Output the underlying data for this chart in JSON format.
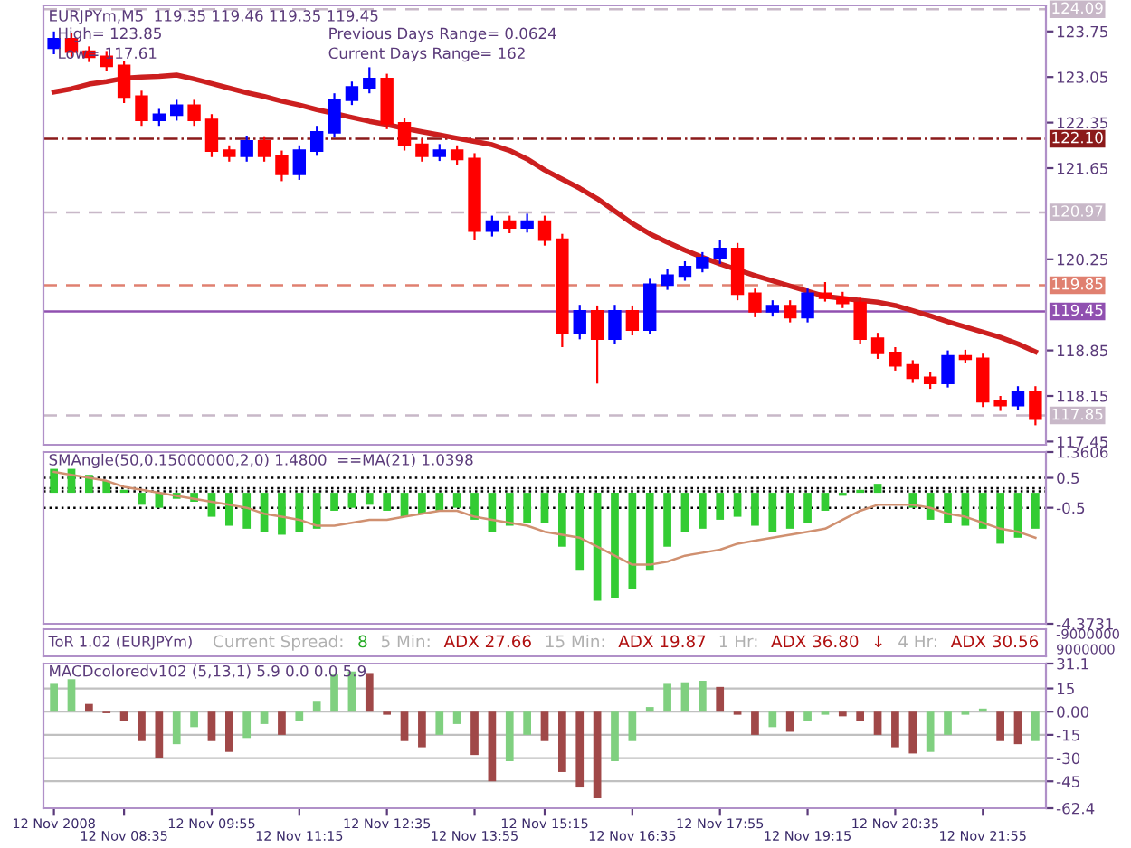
{
  "chart_data": [
    {
      "type": "candlestick",
      "title": "EURJPYm,M5  119.35 119.46 119.35 119.45",
      "annotations": [
        "High= 123.85",
        "Low= 117.61",
        "Previous Days Range= 0.0624",
        "Current Days Range= 162"
      ],
      "categories": [
        null,
        null,
        null,
        null,
        null,
        null,
        null,
        null,
        null,
        null,
        null,
        null,
        null,
        null,
        null,
        null,
        null,
        null,
        null,
        null,
        null,
        null,
        null,
        null,
        null,
        null,
        null,
        null,
        null,
        null,
        null,
        null,
        null,
        null,
        null,
        null,
        null,
        null,
        null,
        null,
        null,
        null,
        null,
        null,
        null,
        null,
        null,
        null,
        null,
        null,
        null,
        null,
        null,
        null,
        null,
        null,
        null
      ],
      "ohlc": [
        [
          123.5,
          123.75,
          123.4,
          123.63
        ],
        [
          123.63,
          123.72,
          123.36,
          123.44
        ],
        [
          123.44,
          123.52,
          123.28,
          123.36
        ],
        [
          123.36,
          123.45,
          123.14,
          123.22
        ],
        [
          123.22,
          123.3,
          122.65,
          122.75
        ],
        [
          122.75,
          122.84,
          122.3,
          122.39
        ],
        [
          122.39,
          122.56,
          122.3,
          122.47
        ],
        [
          122.47,
          122.7,
          122.38,
          122.61
        ],
        [
          122.61,
          122.7,
          122.3,
          122.39
        ],
        [
          122.39,
          122.48,
          121.82,
          121.92
        ],
        [
          121.92,
          122.0,
          121.75,
          121.84
        ],
        [
          121.84,
          122.15,
          121.75,
          122.06
        ],
        [
          122.06,
          122.14,
          121.75,
          121.84
        ],
        [
          121.84,
          121.92,
          121.45,
          121.56
        ],
        [
          121.56,
          122.0,
          121.47,
          121.92
        ],
        [
          121.92,
          122.3,
          121.84,
          122.2
        ],
        [
          122.2,
          122.8,
          122.12,
          122.7
        ],
        [
          122.7,
          122.98,
          122.62,
          122.89
        ],
        [
          122.89,
          123.2,
          122.8,
          123.02
        ],
        [
          123.02,
          123.1,
          122.25,
          122.34
        ],
        [
          122.34,
          122.42,
          121.92,
          122.01
        ],
        [
          122.01,
          122.1,
          121.75,
          121.84
        ],
        [
          121.84,
          122.02,
          121.76,
          121.92
        ],
        [
          121.92,
          122.0,
          121.7,
          121.79
        ],
        [
          121.79,
          121.88,
          120.55,
          120.69
        ],
        [
          120.69,
          120.92,
          120.6,
          120.83
        ],
        [
          120.83,
          120.92,
          120.65,
          120.74
        ],
        [
          120.74,
          120.95,
          120.66,
          120.83
        ],
        [
          120.83,
          120.92,
          120.46,
          120.55
        ],
        [
          120.55,
          120.64,
          118.9,
          119.12
        ],
        [
          119.12,
          119.55,
          119.02,
          119.45
        ],
        [
          119.45,
          119.54,
          118.34,
          119.03
        ],
        [
          119.03,
          119.55,
          118.95,
          119.45
        ],
        [
          119.45,
          119.54,
          119.08,
          119.17
        ],
        [
          119.17,
          119.95,
          119.1,
          119.86
        ],
        [
          119.86,
          120.1,
          119.78,
          120.0
        ],
        [
          120.0,
          120.22,
          119.92,
          120.13
        ],
        [
          120.13,
          120.36,
          120.05,
          120.27
        ],
        [
          120.27,
          120.55,
          120.18,
          120.41
        ],
        [
          120.41,
          120.5,
          119.62,
          119.72
        ],
        [
          119.72,
          119.8,
          119.36,
          119.45
        ],
        [
          119.45,
          119.62,
          119.37,
          119.53
        ],
        [
          119.53,
          119.62,
          119.28,
          119.36
        ],
        [
          119.36,
          119.8,
          119.28,
          119.72
        ],
        [
          119.72,
          119.9,
          119.6,
          119.66
        ],
        [
          119.66,
          119.75,
          119.5,
          119.58
        ],
        [
          119.58,
          119.66,
          118.95,
          119.03
        ],
        [
          119.03,
          119.12,
          118.72,
          118.81
        ],
        [
          118.81,
          118.9,
          118.54,
          118.62
        ],
        [
          118.62,
          118.7,
          118.35,
          118.43
        ],
        [
          118.43,
          118.52,
          118.26,
          118.35
        ],
        [
          118.35,
          118.85,
          118.28,
          118.76
        ],
        [
          118.76,
          118.86,
          118.66,
          118.72
        ],
        [
          118.72,
          118.8,
          117.98,
          118.07
        ],
        [
          118.07,
          118.15,
          117.92,
          118.01
        ],
        [
          118.01,
          118.3,
          117.94,
          118.21
        ],
        [
          118.21,
          118.3,
          117.7,
          117.8
        ]
      ],
      "colors": [
        "#0000ff",
        "#ff0000",
        "#ff0000",
        "#ff0000",
        "#ff0000",
        "#ff0000",
        "#0000ff",
        "#0000ff",
        "#ff0000",
        "#ff0000",
        "#ff0000",
        "#0000ff",
        "#ff0000",
        "#ff0000",
        "#0000ff",
        "#0000ff",
        "#0000ff",
        "#0000ff",
        "#0000ff",
        "#ff0000",
        "#ff0000",
        "#ff0000",
        "#0000ff",
        "#ff0000",
        "#ff0000",
        "#0000ff",
        "#ff0000",
        "#0000ff",
        "#ff0000",
        "#ff0000",
        "#0000ff",
        "#ff0000",
        "#0000ff",
        "#ff0000",
        "#0000ff",
        "#0000ff",
        "#0000ff",
        "#0000ff",
        "#0000ff",
        "#ff0000",
        "#ff0000",
        "#0000ff",
        "#ff0000",
        "#0000ff",
        "#ff0000",
        "#ff0000",
        "#ff0000",
        "#ff0000",
        "#ff0000",
        "#ff0000",
        "#ff0000",
        "#0000ff",
        "#ff0000",
        "#ff0000",
        "#ff0000",
        "#0000ff",
        "#ff0000"
      ],
      "series": [
        {
          "type": "line",
          "color": "#cc1f1f",
          "values": [
            122.82,
            122.87,
            122.94,
            122.98,
            123.03,
            123.05,
            123.06,
            123.08,
            123.02,
            122.95,
            122.88,
            122.81,
            122.75,
            122.68,
            122.62,
            122.55,
            122.49,
            122.43,
            122.37,
            122.32,
            122.26,
            122.21,
            122.16,
            122.11,
            122.06,
            122.01,
            121.92,
            121.79,
            121.62,
            121.48,
            121.34,
            121.18,
            120.99,
            120.8,
            120.64,
            120.51,
            120.39,
            120.28,
            120.18,
            120.09,
            120.0,
            119.92,
            119.84,
            119.76,
            119.68,
            119.65,
            119.62,
            119.59,
            119.54,
            119.46,
            119.38,
            119.29,
            119.21,
            119.13,
            119.05,
            118.95,
            118.83
          ]
        }
      ],
      "ylim": [
        117.4,
        124.15
      ],
      "yticks": [
        117.45,
        118.15,
        118.85,
        120.25,
        121.65,
        122.35,
        123.05,
        123.75
      ],
      "tick_labels": "y",
      "ref_lines": [
        {
          "axis": "y",
          "value": 124.09,
          "label": "124.09",
          "color": "#c8b8c8",
          "line_style": "dashed"
        },
        {
          "axis": "y",
          "value": 122.1,
          "label": "122.10",
          "color": "#8b1a1a",
          "line_style": "dashdot"
        },
        {
          "axis": "y",
          "value": 120.97,
          "label": "120.97",
          "color": "#c8b8c8",
          "line_style": "dashed"
        },
        {
          "axis": "y",
          "value": 119.85,
          "label": "119.85",
          "color": "#e08070",
          "line_style": "dashed"
        },
        {
          "axis": "y",
          "value": 119.45,
          "label": "119.45",
          "color": "#9050b0",
          "line_style": "solid"
        },
        {
          "axis": "y",
          "value": 117.85,
          "label": "117.85",
          "color": "#c8b8c8",
          "line_style": "dashed"
        }
      ]
    },
    {
      "type": "bar",
      "title": "SMAngle(50,0.15000000,2,0) 1.4800  ==MA(21) 1.0398",
      "color": "#33cc33",
      "categories": [
        null,
        null,
        null,
        null,
        null,
        null,
        null,
        null,
        null,
        null,
        null,
        null,
        null,
        null,
        null,
        null,
        null,
        null,
        null,
        null,
        null,
        null,
        null,
        null,
        null,
        null,
        null,
        null,
        null,
        null,
        null,
        null,
        null,
        null,
        null,
        null,
        null,
        null,
        null,
        null,
        null,
        null,
        null,
        null,
        null,
        null,
        null,
        null,
        null,
        null,
        null,
        null,
        null,
        null,
        null,
        null,
        null
      ],
      "values": [
        0.8,
        0.8,
        0.6,
        0.4,
        0.1,
        -0.4,
        -0.5,
        -0.2,
        -0.3,
        -0.8,
        -1.1,
        -1.2,
        -1.3,
        -1.4,
        -1.3,
        -1.2,
        -0.6,
        -0.5,
        -0.4,
        -0.6,
        -0.8,
        -0.7,
        -0.6,
        -0.5,
        -0.9,
        -1.3,
        -1.1,
        -1.0,
        -1.0,
        -1.8,
        -2.6,
        -3.6,
        -3.5,
        -3.2,
        -2.6,
        -1.8,
        -1.3,
        -1.2,
        -0.9,
        -0.8,
        -1.1,
        -1.3,
        -1.2,
        -1.0,
        -0.6,
        -0.1,
        0.1,
        0.3,
        0.0,
        -0.5,
        -0.9,
        -1.0,
        -1.1,
        -1.2,
        -1.7,
        -1.5,
        -1.2
      ],
      "series": [
        {
          "type": "line",
          "color": "#d09070",
          "values": [
            0.7,
            0.6,
            0.5,
            0.4,
            0.2,
            0.1,
            0.0,
            -0.1,
            -0.2,
            -0.3,
            -0.4,
            -0.5,
            -0.7,
            -0.8,
            -0.9,
            -1.1,
            -1.1,
            -1.0,
            -0.9,
            -0.9,
            -0.8,
            -0.7,
            -0.6,
            -0.6,
            -0.8,
            -0.9,
            -1.0,
            -1.1,
            -1.3,
            -1.4,
            -1.5,
            -1.8,
            -2.1,
            -2.4,
            -2.4,
            -2.3,
            -2.1,
            -2.0,
            -1.9,
            -1.7,
            -1.6,
            -1.5,
            -1.4,
            -1.3,
            -1.2,
            -0.9,
            -0.6,
            -0.4,
            -0.4,
            -0.4,
            -0.5,
            -0.7,
            -0.8,
            -1.0,
            -1.2,
            -1.3,
            -1.5
          ]
        }
      ],
      "ylim": [
        -4.3731,
        1.3606
      ],
      "yticks": [
        1.3606,
        0.5,
        -0.5,
        -4.3731
      ],
      "tick_labels": "y",
      "ref_lines": [
        {
          "axis": "y",
          "value": 0.5,
          "line_style": "dotted",
          "color": "#000000"
        },
        {
          "axis": "y",
          "value": 0.15,
          "line_style": "dotted",
          "color": "#000000"
        },
        {
          "axis": "y",
          "value": 0.05,
          "line_style": "dotted",
          "color": "#000000"
        },
        {
          "axis": "y",
          "value": -0.5,
          "line_style": "dotted",
          "color": "#000000"
        }
      ]
    },
    {
      "type": "other",
      "title": "ToR 1.02 (EURJPYm)",
      "annotations": [
        "Current Spread:",
        "8",
        "5 Min:",
        "ADX 27.66",
        "15 Min:",
        "ADX 19.87",
        "1 Hr:",
        "ADX 36.80",
        "↓",
        "4 Hr:",
        "ADX 30.56",
        "-9000000",
        "9000000"
      ]
    },
    {
      "type": "bar",
      "title": "MACDcoloredv102 (5,13,1) 5.9 0.0 0.0 5.9",
      "categories": [
        "12 Nov 2008",
        null,
        null,
        null,
        "12 Nov 08:35",
        null,
        null,
        null,
        null,
        "12 Nov 09:55",
        null,
        null,
        null,
        null,
        "12 Nov 11:15",
        null,
        null,
        null,
        null,
        "12 Nov 12:35",
        null,
        null,
        null,
        null,
        "12 Nov 13:55",
        null,
        null,
        null,
        "12 Nov 15:15",
        null,
        null,
        null,
        null,
        "12 Nov 16:35",
        null,
        null,
        null,
        null,
        "12 Nov 17:55",
        null,
        null,
        null,
        null,
        "12 Nov 19:15",
        null,
        null,
        null,
        null,
        "12 Nov 20:35",
        null,
        null,
        null,
        null,
        "12 Nov 21:55",
        null,
        null,
        null
      ],
      "values": [
        18,
        21,
        5,
        -1,
        -6,
        -19,
        -30,
        -21,
        -10,
        -19,
        -26,
        -17,
        -8,
        -15,
        -6,
        7,
        24,
        26,
        25,
        -2,
        -19,
        -23,
        -15,
        -8,
        -28,
        -45,
        -32,
        -15,
        -19,
        -39,
        -49,
        -56,
        -32,
        -19,
        3,
        18,
        19,
        20,
        16,
        -2,
        -15,
        -10,
        -13,
        -6,
        -2,
        -3,
        -6,
        -15,
        -23,
        -27,
        -26,
        -15,
        -2,
        2,
        -19,
        -21,
        -19
      ],
      "colors": [
        "#80d080",
        "#80d080",
        "#a04848",
        "#a04848",
        "#a04848",
        "#a04848",
        "#a04848",
        "#80d080",
        "#80d080",
        "#a04848",
        "#a04848",
        "#80d080",
        "#80d080",
        "#a04848",
        "#80d080",
        "#80d080",
        "#80d080",
        "#80d080",
        "#a04848",
        "#a04848",
        "#a04848",
        "#a04848",
        "#80d080",
        "#80d080",
        "#a04848",
        "#a04848",
        "#80d080",
        "#80d080",
        "#a04848",
        "#a04848",
        "#a04848",
        "#a04848",
        "#80d080",
        "#80d080",
        "#80d080",
        "#80d080",
        "#80d080",
        "#80d080",
        "#a04848",
        "#a04848",
        "#a04848",
        "#80d080",
        "#a04848",
        "#80d080",
        "#80d080",
        "#a04848",
        "#a04848",
        "#a04848",
        "#a04848",
        "#a04848",
        "#80d080",
        "#80d080",
        "#80d080",
        "#80d080",
        "#a04848",
        "#a04848",
        "#80d080"
      ],
      "ylim": [
        -62.4,
        31.1
      ],
      "yticks": [
        31.1,
        15,
        {
          "value": 0,
          "label": "0.00"
        },
        -15,
        -30,
        -45,
        -62.4
      ],
      "grid": "y"
    }
  ]
}
